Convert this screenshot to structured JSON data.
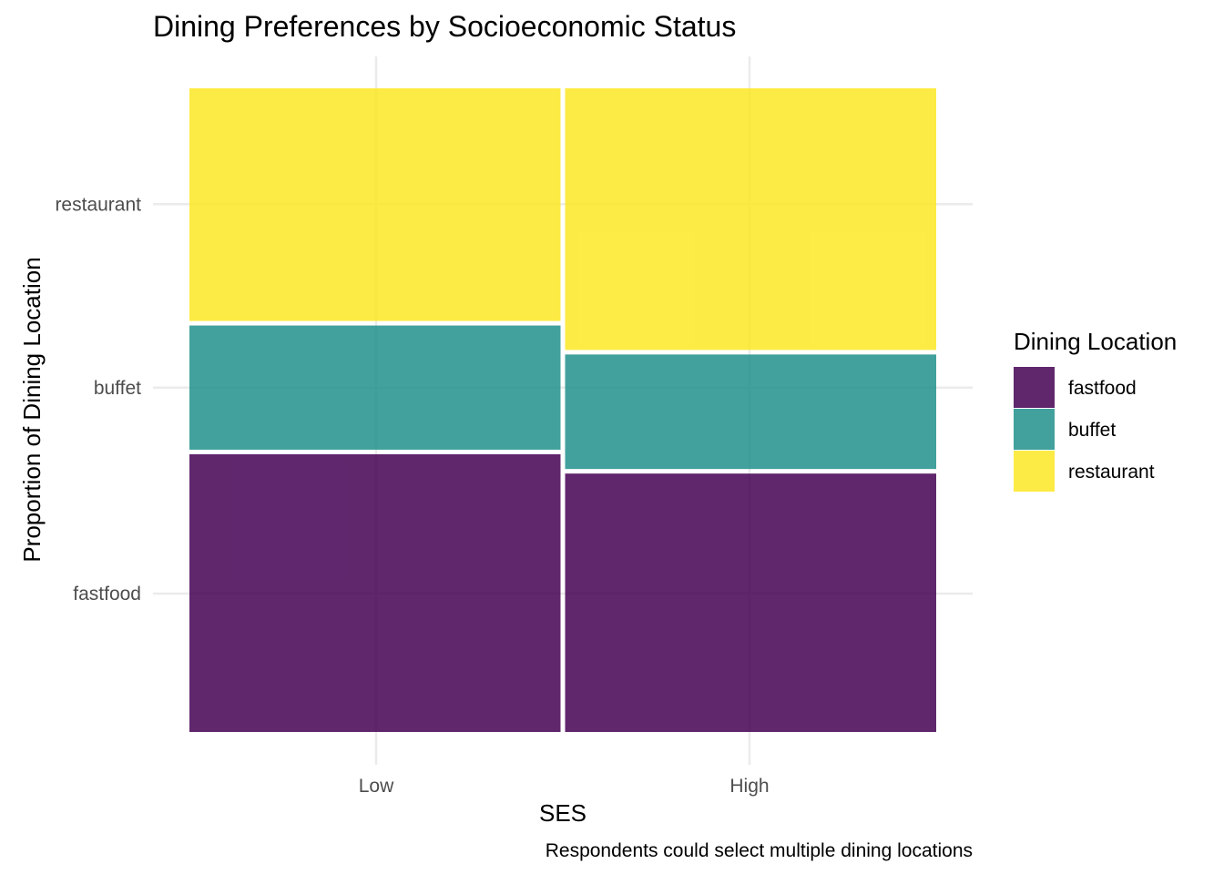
{
  "chart_data": {
    "type": "mosaic",
    "title": "Dining Preferences by Socioeconomic Status",
    "xlabel": "SES",
    "ylabel": "Proportion of Dining Location",
    "caption": "Respondents could select multiple dining locations",
    "categories": [
      "Low",
      "High"
    ],
    "category_widths": [
      0.5,
      0.5
    ],
    "y_tick_labels": [
      "fastfood",
      "buffet",
      "restaurant"
    ],
    "y_tick_positions": [
      0.215,
      0.535,
      0.82
    ],
    "series": [
      {
        "name": "fastfood",
        "values": [
          0.435,
          0.405
        ]
      },
      {
        "name": "buffet",
        "values": [
          0.2,
          0.185
        ]
      },
      {
        "name": "restaurant",
        "values": [
          0.365,
          0.41
        ]
      }
    ],
    "legend": {
      "title": "Dining Location",
      "position": "right",
      "items": [
        "fastfood",
        "buffet",
        "restaurant"
      ]
    },
    "colors": {
      "fastfood": "#440154",
      "buffet": "#21908C",
      "restaurant": "#FDE725"
    },
    "fill_opacity": 0.85,
    "grid": true
  }
}
